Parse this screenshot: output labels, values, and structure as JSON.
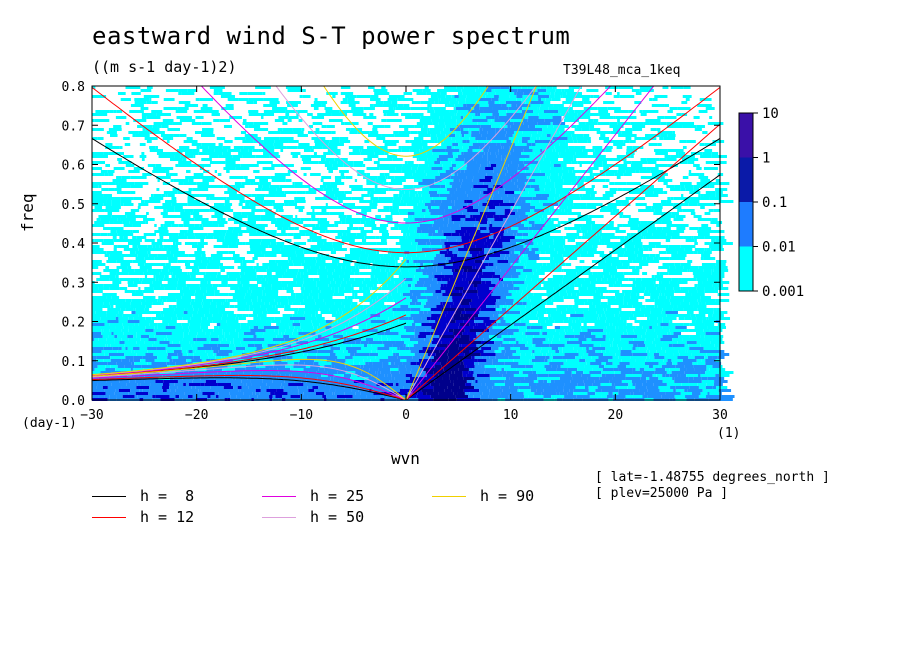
{
  "chart_data": {
    "type": "heatmap",
    "title": "eastward wind S-T power spectrum",
    "units": "((m s-1 day-1)2)",
    "dataset": "T39L48_mca_1keq",
    "xlabel": "wvn",
    "xlabel_unit": "(1)",
    "ylabel": "freq",
    "ylabel_unit": "(day-1)",
    "xlim": [
      -30,
      30
    ],
    "ylim": [
      0,
      0.8
    ],
    "xticks": [
      "-30",
      "-20",
      "-10",
      "0",
      "10",
      "20",
      "30"
    ],
    "yticks": [
      "0.0",
      "0.1",
      "0.2",
      "0.3",
      "0.4",
      "0.5",
      "0.6",
      "0.7",
      "0.8"
    ],
    "colorbar": {
      "labels": [
        "10",
        "1",
        "0.1",
        "0.01",
        "0.001"
      ],
      "levels": [
        0.001,
        0.01,
        0.1,
        1,
        10
      ],
      "colors": [
        "#00ffff",
        "#1e90ff",
        "#0000cd",
        "#00008b",
        "#3f00a0"
      ]
    },
    "dispersion_curves": [
      {
        "name": "h =  8",
        "equivalent_depth": 8,
        "color": "#000000"
      },
      {
        "name": "h = 12",
        "equivalent_depth": 12,
        "color": "#ff0000"
      },
      {
        "name": "h = 25",
        "equivalent_depth": 25,
        "color": "#e000e0"
      },
      {
        "name": "h = 50",
        "equivalent_depth": 50,
        "color": "#dda0dd"
      },
      {
        "name": "h = 90",
        "equivalent_depth": 90,
        "color": "#f0d000"
      }
    ],
    "annotations": [
      "[ lat=-1.48755 degrees_north ]",
      "[ plev=25000 Pa ]"
    ]
  }
}
